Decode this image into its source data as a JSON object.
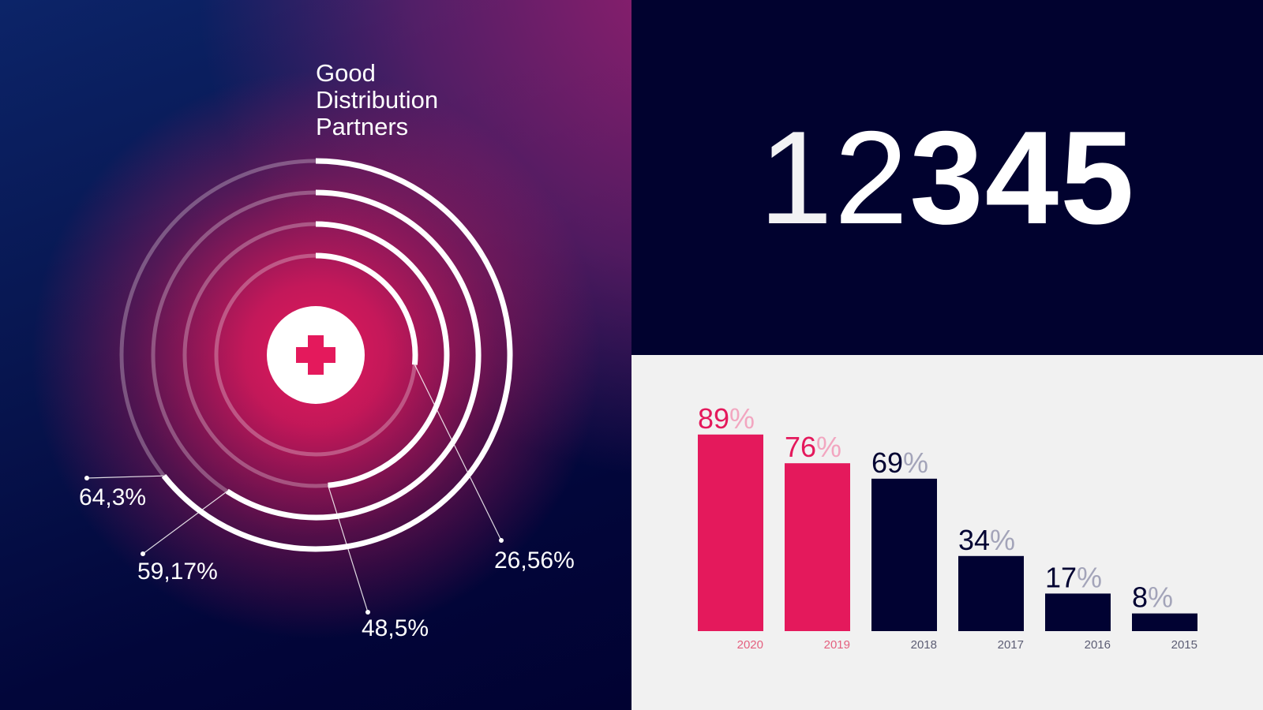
{
  "radial": {
    "title_lines": [
      "Good",
      "Distribution",
      "Partners"
    ],
    "colors": {
      "arc": "#ffffff",
      "track": "rgba(255,255,255,0.28)",
      "cross": "#e4195c"
    },
    "rings": [
      {
        "label": "64,3%",
        "value": 0.643
      },
      {
        "label": "59,17%",
        "value": 0.5917
      },
      {
        "label": "48,5%",
        "value": 0.485
      },
      {
        "label": "26,56%",
        "value": 0.2656
      }
    ],
    "center_icon": "plus-cross-icon"
  },
  "number_display": {
    "digits": [
      "1",
      "2",
      "3",
      "4",
      "5"
    ]
  },
  "chart_data": {
    "type": "bar",
    "categories": [
      "2020",
      "2019",
      "2018",
      "2017",
      "2016",
      "2015"
    ],
    "values": [
      89,
      76,
      69,
      34,
      17,
      8
    ],
    "value_labels": [
      "89",
      "76",
      "69",
      "34",
      "17",
      "8"
    ],
    "percent_sign": "%",
    "title": "",
    "xlabel": "",
    "ylabel": "",
    "ylim": [
      0,
      100
    ],
    "grid": false,
    "legend": "none",
    "colors": {
      "highlight": "#e4195c",
      "highlight_percent": "#f2a6c0",
      "normal": "#010232",
      "normal_percent": "#a3a4b9",
      "highlight_year": "#e4607f",
      "normal_year": "#5c5d74"
    },
    "highlight_count": 2
  }
}
